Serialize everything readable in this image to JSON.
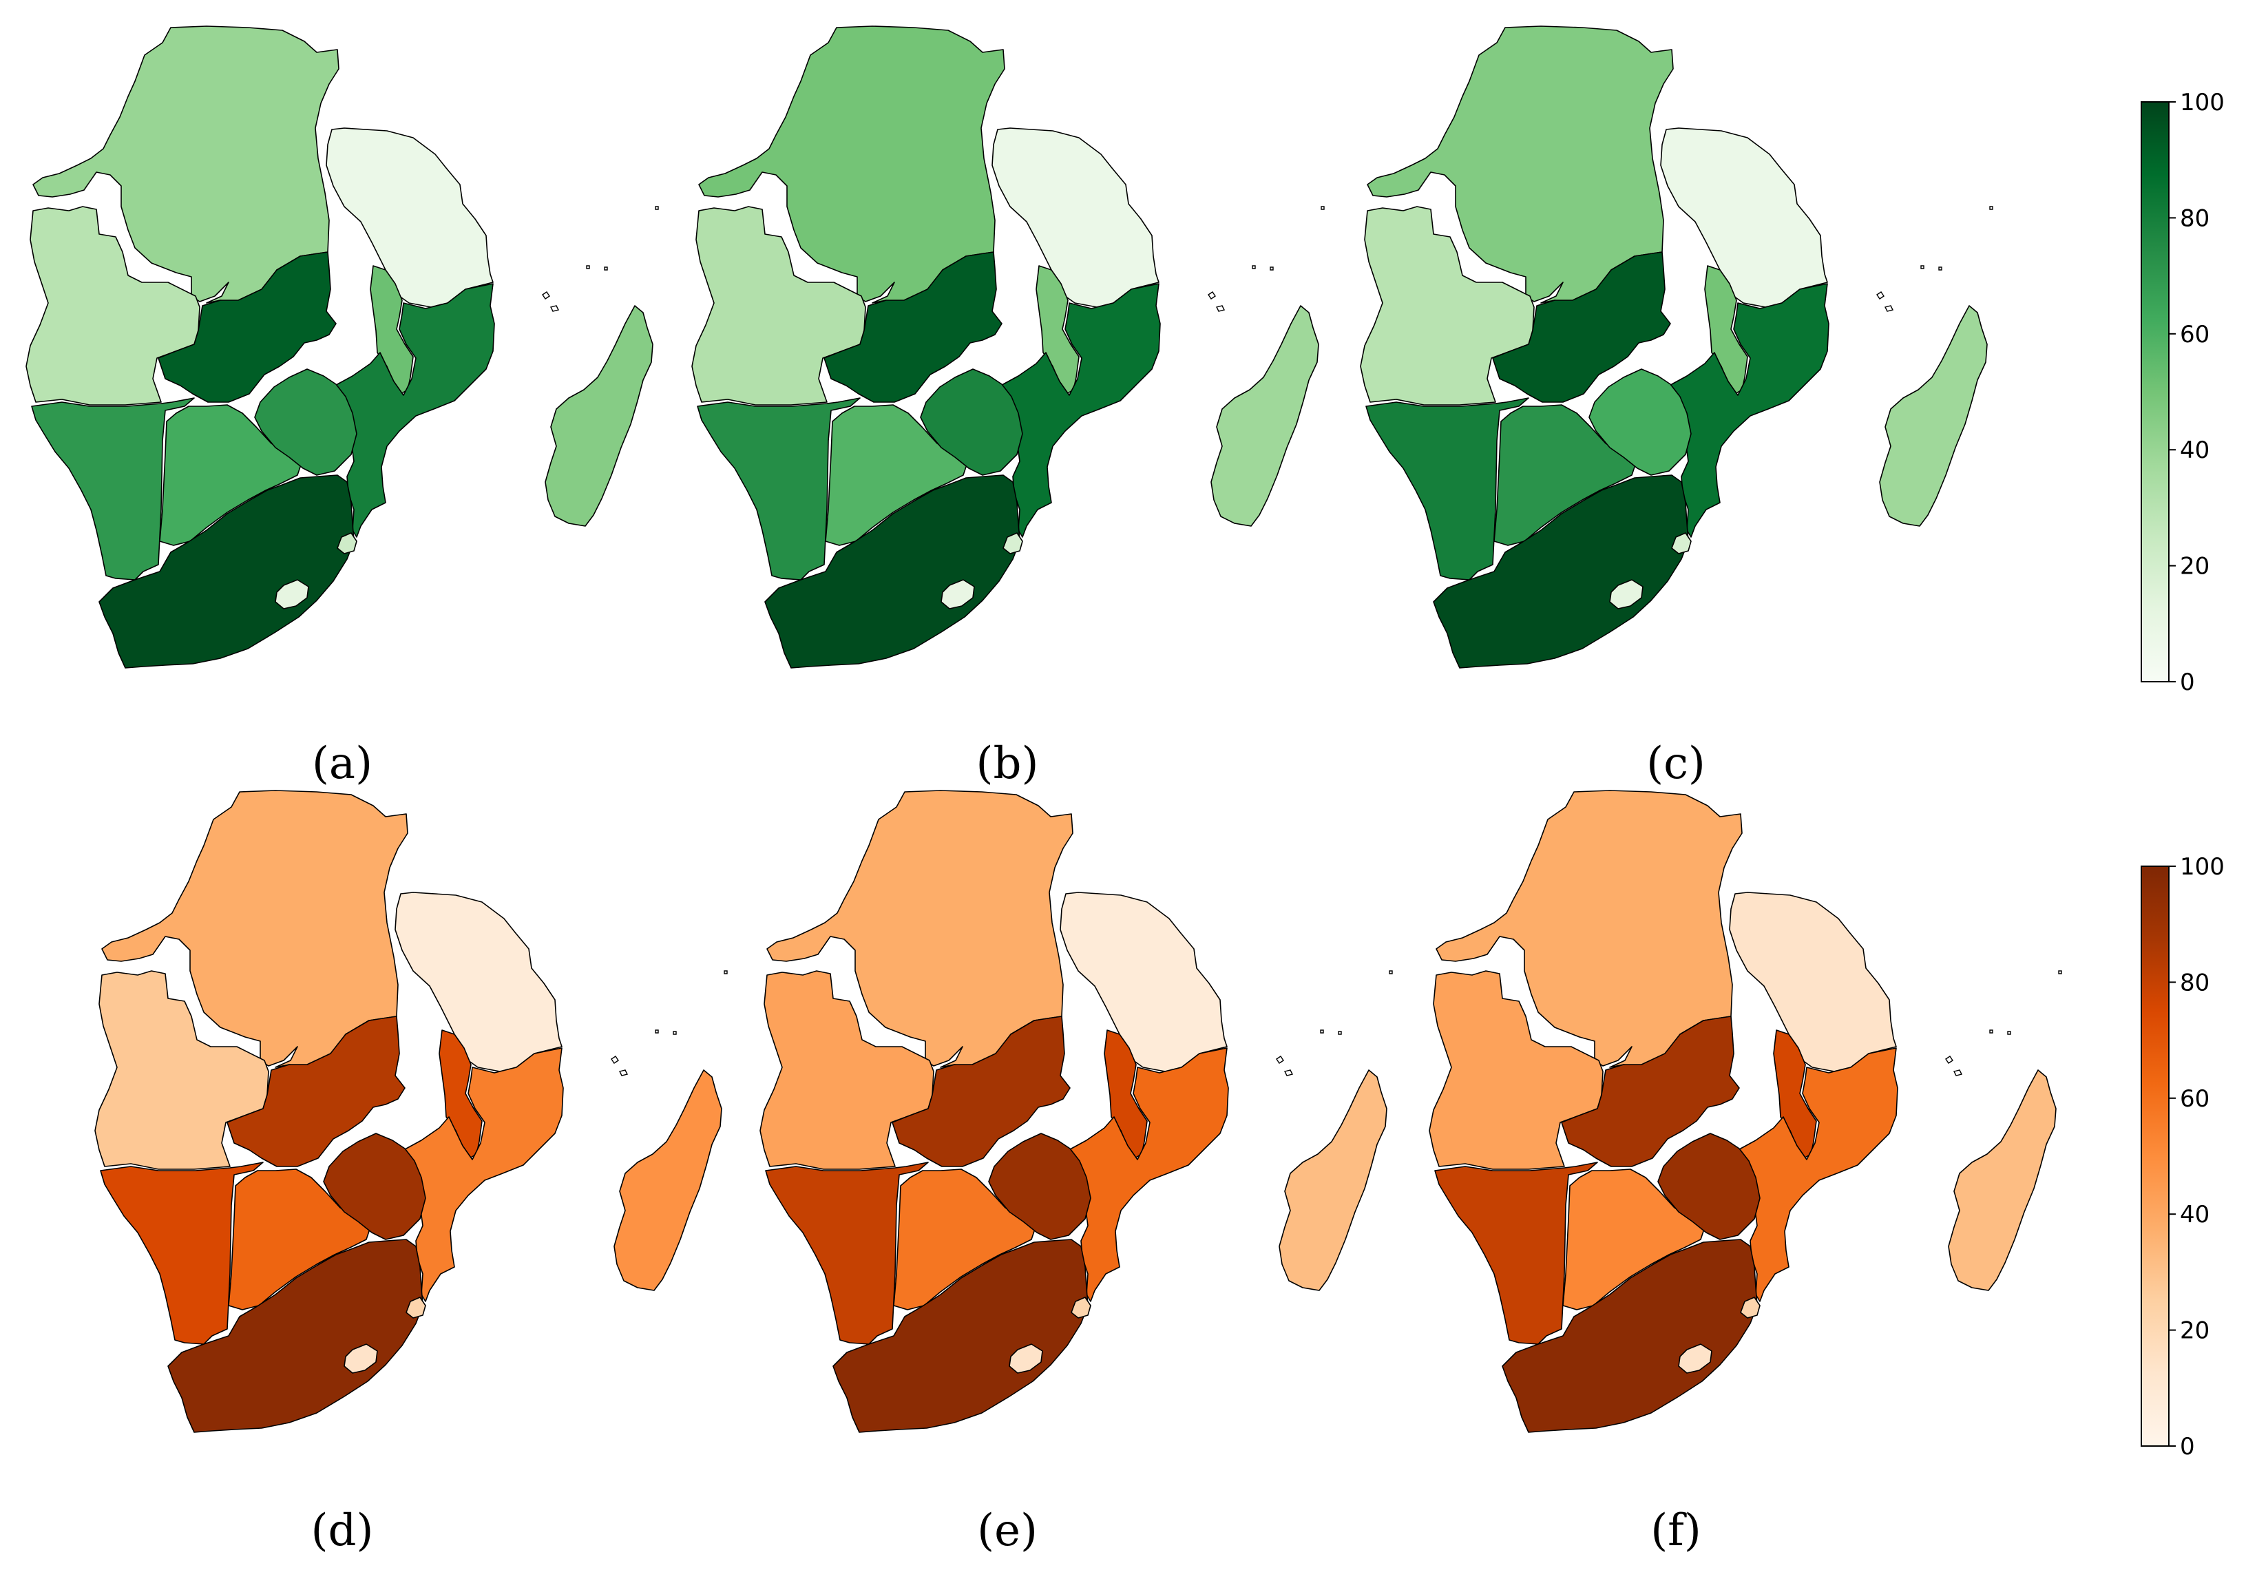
{
  "panels": [
    {
      "label": "(a)",
      "palette": "greens",
      "values": {
        "DRC": 40,
        "Angola": 30,
        "Tanzania": 8,
        "Zambia": 92,
        "Malawi": 52,
        "Mozambique": 80,
        "Namibia": 70,
        "Botswana": 62,
        "Zimbabwe": 72,
        "SouthAfrica": 98,
        "Lesotho": 12,
        "Eswatini": 22,
        "Madagascar": 45
      }
    },
    {
      "label": "(b)",
      "palette": "greens",
      "values": {
        "DRC": 50,
        "Angola": 32,
        "Tanzania": 8,
        "Zambia": 93,
        "Malawi": 48,
        "Mozambique": 85,
        "Namibia": 74,
        "Botswana": 58,
        "Zimbabwe": 78,
        "SouthAfrica": 98,
        "Lesotho": 10,
        "Eswatini": 18,
        "Madagascar": 38
      }
    },
    {
      "label": "(c)",
      "palette": "greens",
      "values": {
        "DRC": 46,
        "Angola": 30,
        "Tanzania": 8,
        "Zambia": 94,
        "Malawi": 50,
        "Mozambique": 85,
        "Namibia": 80,
        "Botswana": 72,
        "Zimbabwe": 62,
        "SouthAfrica": 98,
        "Lesotho": 12,
        "Eswatini": 18,
        "Madagascar": 38
      }
    },
    {
      "label": "(d)",
      "palette": "oranges",
      "values": {
        "DRC": 38,
        "Angola": 28,
        "Tanzania": 8,
        "Zambia": 84,
        "Malawi": 74,
        "Mozambique": 55,
        "Namibia": 75,
        "Botswana": 64,
        "Zimbabwe": 90,
        "SouthAfrica": 96,
        "Lesotho": 14,
        "Eswatini": 22,
        "Madagascar": 48
      }
    },
    {
      "label": "(e)",
      "palette": "oranges",
      "values": {
        "DRC": 38,
        "Angola": 42,
        "Tanzania": 8,
        "Zambia": 88,
        "Malawi": 76,
        "Mozambique": 62,
        "Namibia": 80,
        "Botswana": 58,
        "Zimbabwe": 92,
        "SouthAfrica": 96,
        "Lesotho": 14,
        "Eswatini": 22,
        "Madagascar": 32
      }
    },
    {
      "label": "(f)",
      "palette": "oranges",
      "values": {
        "DRC": 38,
        "Angola": 42,
        "Tanzania": 14,
        "Zambia": 88,
        "Malawi": 76,
        "Mozambique": 60,
        "Namibia": 80,
        "Botswana": 52,
        "Zimbabwe": 92,
        "SouthAfrica": 96,
        "Lesotho": 14,
        "Eswatini": 22,
        "Madagascar": 32
      }
    }
  ],
  "colorbars": [
    {
      "palette": "greens",
      "min": 0,
      "max": 100,
      "ticks": [
        "0",
        "20",
        "40",
        "60",
        "80",
        "100"
      ]
    },
    {
      "palette": "oranges",
      "min": 0,
      "max": 100,
      "ticks": [
        "0",
        "20",
        "40",
        "60",
        "80",
        "100"
      ]
    }
  ],
  "colors": {
    "greens": [
      "#f7fcf5",
      "#e5f5e0",
      "#c7e9c0",
      "#a1d99b",
      "#74c476",
      "#41ab5d",
      "#238b45",
      "#006d2c",
      "#00441b"
    ],
    "oranges": [
      "#fff5eb",
      "#fee6ce",
      "#fdd0a2",
      "#fdae6b",
      "#fd8d3c",
      "#f16913",
      "#d94801",
      "#a63603",
      "#7f2704"
    ]
  }
}
